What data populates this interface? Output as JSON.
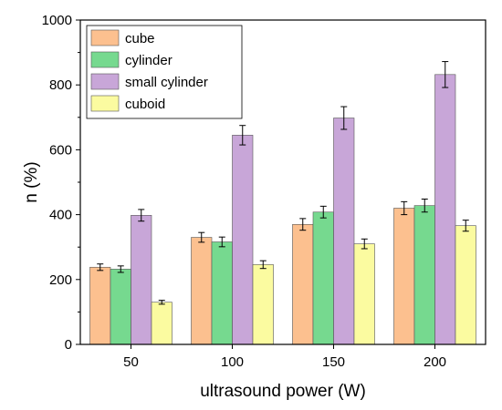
{
  "chart_data": {
    "type": "bar",
    "title": "",
    "xlabel": "ultrasound power (W)",
    "ylabel": "n (%)",
    "categories": [
      "50",
      "100",
      "150",
      "200"
    ],
    "ylim": [
      0,
      1000
    ],
    "yticks": [
      "0",
      "200",
      "400",
      "600",
      "800",
      "1000"
    ],
    "legend_position": "top-left",
    "grid": false,
    "series": [
      {
        "name": "cube",
        "color": "#fcc08f",
        "values": [
          238,
          330,
          370,
          420
        ],
        "errors": [
          10,
          15,
          18,
          20
        ]
      },
      {
        "name": "cylinder",
        "color": "#76d98f",
        "values": [
          232,
          316,
          408,
          428
        ],
        "errors": [
          10,
          15,
          18,
          20
        ]
      },
      {
        "name": "small cylinder",
        "color": "#c8a6d8",
        "values": [
          398,
          645,
          698,
          832
        ],
        "errors": [
          18,
          30,
          35,
          40
        ]
      },
      {
        "name": "cuboid",
        "color": "#fbfba0",
        "values": [
          130,
          246,
          310,
          366
        ],
        "errors": [
          6,
          12,
          15,
          17
        ]
      }
    ]
  }
}
